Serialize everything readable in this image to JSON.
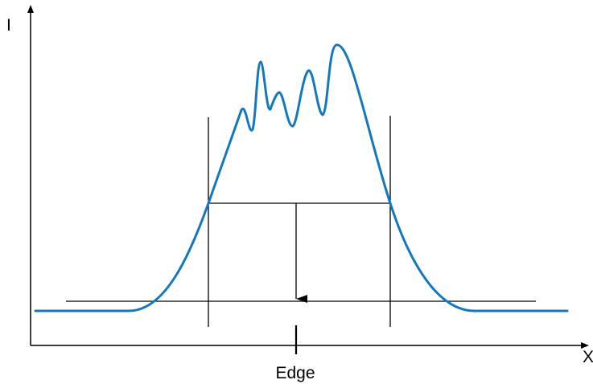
{
  "labels": {
    "y_axis": "I",
    "x_axis": "X",
    "edge": "Edge"
  },
  "colors": {
    "curve": "#1478BE",
    "lines": "#000000",
    "background": "#FFFFFF"
  }
}
